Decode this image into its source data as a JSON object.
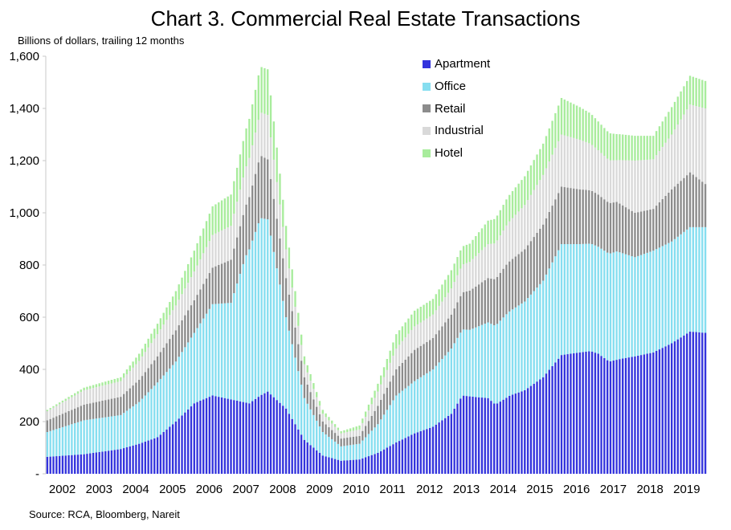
{
  "chart_data": {
    "type": "bar",
    "stacked": true,
    "title": "Chart 3. Commercial Real Estate Transactions",
    "ylabel": "Billions of dollars, trailing 12 months",
    "xlabel": "",
    "source": "Source: RCA, Bloomberg, Nareit",
    "ylim": [
      0,
      1600
    ],
    "y_ticks": [
      "-",
      "200",
      "400",
      "600",
      "800",
      "1,000",
      "1,200",
      "1,400",
      "1,600"
    ],
    "x_tick_labels": [
      "2002",
      "2003",
      "2004",
      "2005",
      "2006",
      "2007",
      "2008",
      "2009",
      "2010",
      "2011",
      "2012",
      "2013",
      "2014",
      "2015",
      "2016",
      "2017",
      "2018",
      "2019"
    ],
    "frequency": "monthly",
    "x_start": "2002-01",
    "x_end": "2019-12",
    "legend_position": "top-right",
    "grid": false,
    "series": [
      {
        "name": "Apartment",
        "color": "#3333dd",
        "anchors": [
          [
            2002.0,
            65
          ],
          [
            2003.0,
            75
          ],
          [
            2004.0,
            95
          ],
          [
            2004.5,
            115
          ],
          [
            2005.0,
            140
          ],
          [
            2005.5,
            200
          ],
          [
            2006.0,
            270
          ],
          [
            2006.5,
            300
          ],
          [
            2007.0,
            285
          ],
          [
            2007.5,
            270
          ],
          [
            2007.8,
            300
          ],
          [
            2008.0,
            315
          ],
          [
            2008.5,
            250
          ],
          [
            2009.0,
            130
          ],
          [
            2009.5,
            70
          ],
          [
            2010.0,
            50
          ],
          [
            2010.5,
            55
          ],
          [
            2011.0,
            80
          ],
          [
            2011.5,
            120
          ],
          [
            2012.0,
            155
          ],
          [
            2012.5,
            180
          ],
          [
            2013.0,
            230
          ],
          [
            2013.3,
            300
          ],
          [
            2013.6,
            295
          ],
          [
            2014.0,
            290
          ],
          [
            2014.2,
            265
          ],
          [
            2014.6,
            300
          ],
          [
            2015.0,
            320
          ],
          [
            2015.5,
            370
          ],
          [
            2016.0,
            455
          ],
          [
            2016.5,
            465
          ],
          [
            2016.8,
            470
          ],
          [
            2017.0,
            460
          ],
          [
            2017.3,
            430
          ],
          [
            2017.6,
            440
          ],
          [
            2018.0,
            450
          ],
          [
            2018.5,
            465
          ],
          [
            2019.0,
            500
          ],
          [
            2019.5,
            545
          ],
          [
            2019.92,
            540
          ]
        ]
      },
      {
        "name": "Office",
        "color": "#86def0",
        "anchors": [
          [
            2002.0,
            95
          ],
          [
            2003.0,
            130
          ],
          [
            2004.0,
            130
          ],
          [
            2004.5,
            160
          ],
          [
            2005.0,
            210
          ],
          [
            2005.5,
            230
          ],
          [
            2006.0,
            270
          ],
          [
            2006.5,
            350
          ],
          [
            2007.0,
            370
          ],
          [
            2007.4,
            560
          ],
          [
            2007.8,
            680
          ],
          [
            2008.0,
            660
          ],
          [
            2008.5,
            350
          ],
          [
            2009.0,
            160
          ],
          [
            2009.5,
            90
          ],
          [
            2010.0,
            55
          ],
          [
            2010.5,
            60
          ],
          [
            2011.0,
            110
          ],
          [
            2011.5,
            180
          ],
          [
            2012.0,
            200
          ],
          [
            2012.5,
            220
          ],
          [
            2013.0,
            250
          ],
          [
            2013.5,
            255
          ],
          [
            2014.0,
            290
          ],
          [
            2014.5,
            320
          ],
          [
            2015.0,
            340
          ],
          [
            2015.5,
            370
          ],
          [
            2016.0,
            425
          ],
          [
            2016.5,
            415
          ],
          [
            2017.0,
            410
          ],
          [
            2017.5,
            415
          ],
          [
            2018.0,
            380
          ],
          [
            2018.5,
            390
          ],
          [
            2019.0,
            390
          ],
          [
            2019.5,
            400
          ],
          [
            2019.92,
            405
          ]
        ]
      },
      {
        "name": "Retail",
        "color": "#8c8c8c",
        "anchors": [
          [
            2002.0,
            45
          ],
          [
            2003.0,
            60
          ],
          [
            2004.0,
            70
          ],
          [
            2005.0,
            100
          ],
          [
            2005.5,
            120
          ],
          [
            2006.0,
            125
          ],
          [
            2006.5,
            140
          ],
          [
            2007.0,
            165
          ],
          [
            2007.5,
            200
          ],
          [
            2007.8,
            240
          ],
          [
            2008.0,
            230
          ],
          [
            2008.5,
            150
          ],
          [
            2009.0,
            80
          ],
          [
            2009.5,
            40
          ],
          [
            2010.0,
            30
          ],
          [
            2010.5,
            30
          ],
          [
            2011.0,
            70
          ],
          [
            2011.5,
            100
          ],
          [
            2012.0,
            120
          ],
          [
            2012.5,
            120
          ],
          [
            2013.0,
            130
          ],
          [
            2013.5,
            150
          ],
          [
            2014.0,
            170
          ],
          [
            2014.5,
            190
          ],
          [
            2015.0,
            200
          ],
          [
            2015.5,
            215
          ],
          [
            2016.0,
            220
          ],
          [
            2016.5,
            210
          ],
          [
            2017.0,
            200
          ],
          [
            2017.5,
            190
          ],
          [
            2018.0,
            170
          ],
          [
            2018.5,
            160
          ],
          [
            2019.0,
            200
          ],
          [
            2019.5,
            210
          ],
          [
            2019.92,
            165
          ]
        ]
      },
      {
        "name": "Industrial",
        "color": "#d9d9d9",
        "anchors": [
          [
            2002.0,
            35
          ],
          [
            2003.0,
            55
          ],
          [
            2004.0,
            60
          ],
          [
            2005.0,
            85
          ],
          [
            2005.5,
            95
          ],
          [
            2006.0,
            110
          ],
          [
            2006.5,
            125
          ],
          [
            2007.0,
            130
          ],
          [
            2007.5,
            150
          ],
          [
            2007.8,
            165
          ],
          [
            2008.0,
            170
          ],
          [
            2008.5,
            110
          ],
          [
            2009.0,
            50
          ],
          [
            2009.5,
            30
          ],
          [
            2010.0,
            20
          ],
          [
            2010.5,
            25
          ],
          [
            2011.0,
            55
          ],
          [
            2011.5,
            80
          ],
          [
            2012.0,
            90
          ],
          [
            2012.5,
            90
          ],
          [
            2013.0,
            100
          ],
          [
            2013.5,
            110
          ],
          [
            2014.0,
            130
          ],
          [
            2014.5,
            150
          ],
          [
            2015.0,
            170
          ],
          [
            2015.5,
            190
          ],
          [
            2016.0,
            200
          ],
          [
            2016.5,
            190
          ],
          [
            2017.0,
            170
          ],
          [
            2017.5,
            160
          ],
          [
            2018.0,
            200
          ],
          [
            2018.5,
            190
          ],
          [
            2019.0,
            210
          ],
          [
            2019.5,
            260
          ],
          [
            2019.92,
            290
          ]
        ]
      },
      {
        "name": "Hotel",
        "color": "#a8ec9c",
        "anchors": [
          [
            2002.0,
            5
          ],
          [
            2003.0,
            10
          ],
          [
            2004.0,
            15
          ],
          [
            2005.0,
            40
          ],
          [
            2005.5,
            55
          ],
          [
            2006.0,
            80
          ],
          [
            2006.5,
            110
          ],
          [
            2007.0,
            120
          ],
          [
            2007.5,
            150
          ],
          [
            2007.8,
            175
          ],
          [
            2008.0,
            175
          ],
          [
            2008.5,
            90
          ],
          [
            2009.0,
            30
          ],
          [
            2009.5,
            15
          ],
          [
            2010.0,
            8
          ],
          [
            2010.5,
            15
          ],
          [
            2011.0,
            30
          ],
          [
            2011.5,
            55
          ],
          [
            2012.0,
            60
          ],
          [
            2012.5,
            60
          ],
          [
            2013.0,
            70
          ],
          [
            2013.5,
            70
          ],
          [
            2014.0,
            90
          ],
          [
            2014.5,
            100
          ],
          [
            2015.0,
            110
          ],
          [
            2015.5,
            120
          ],
          [
            2016.0,
            140
          ],
          [
            2016.5,
            125
          ],
          [
            2017.0,
            110
          ],
          [
            2017.5,
            100
          ],
          [
            2018.0,
            95
          ],
          [
            2018.5,
            90
          ],
          [
            2019.0,
            105
          ],
          [
            2019.5,
            110
          ],
          [
            2019.92,
            105
          ]
        ]
      }
    ]
  }
}
